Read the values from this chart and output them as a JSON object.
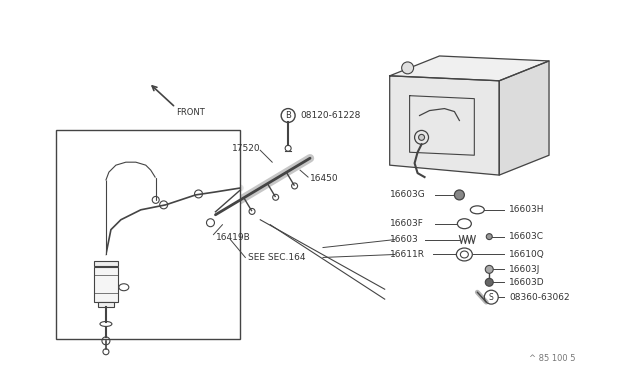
{
  "bg_color": "#ffffff",
  "lc": "#444444",
  "tc": "#333333",
  "fig_width": 6.4,
  "fig_height": 3.72,
  "footer_text": "^ 85 100 5",
  "labels": {
    "front": "FRONT",
    "bolt_b": "08120-61228",
    "l17520": "17520",
    "l16450": "16450",
    "l16419B": "16419B",
    "see_sec": "SEE SEC.164",
    "l16603G": "16603G",
    "l16603H": "16603H",
    "l16603F": "16603F",
    "l16603": "16603",
    "l16603C": "16603C",
    "l16611R": "16611R",
    "l16610Q": "16610Q",
    "l16603J": "16603J",
    "l16603D": "16603D",
    "s_label": "08360-63062"
  }
}
